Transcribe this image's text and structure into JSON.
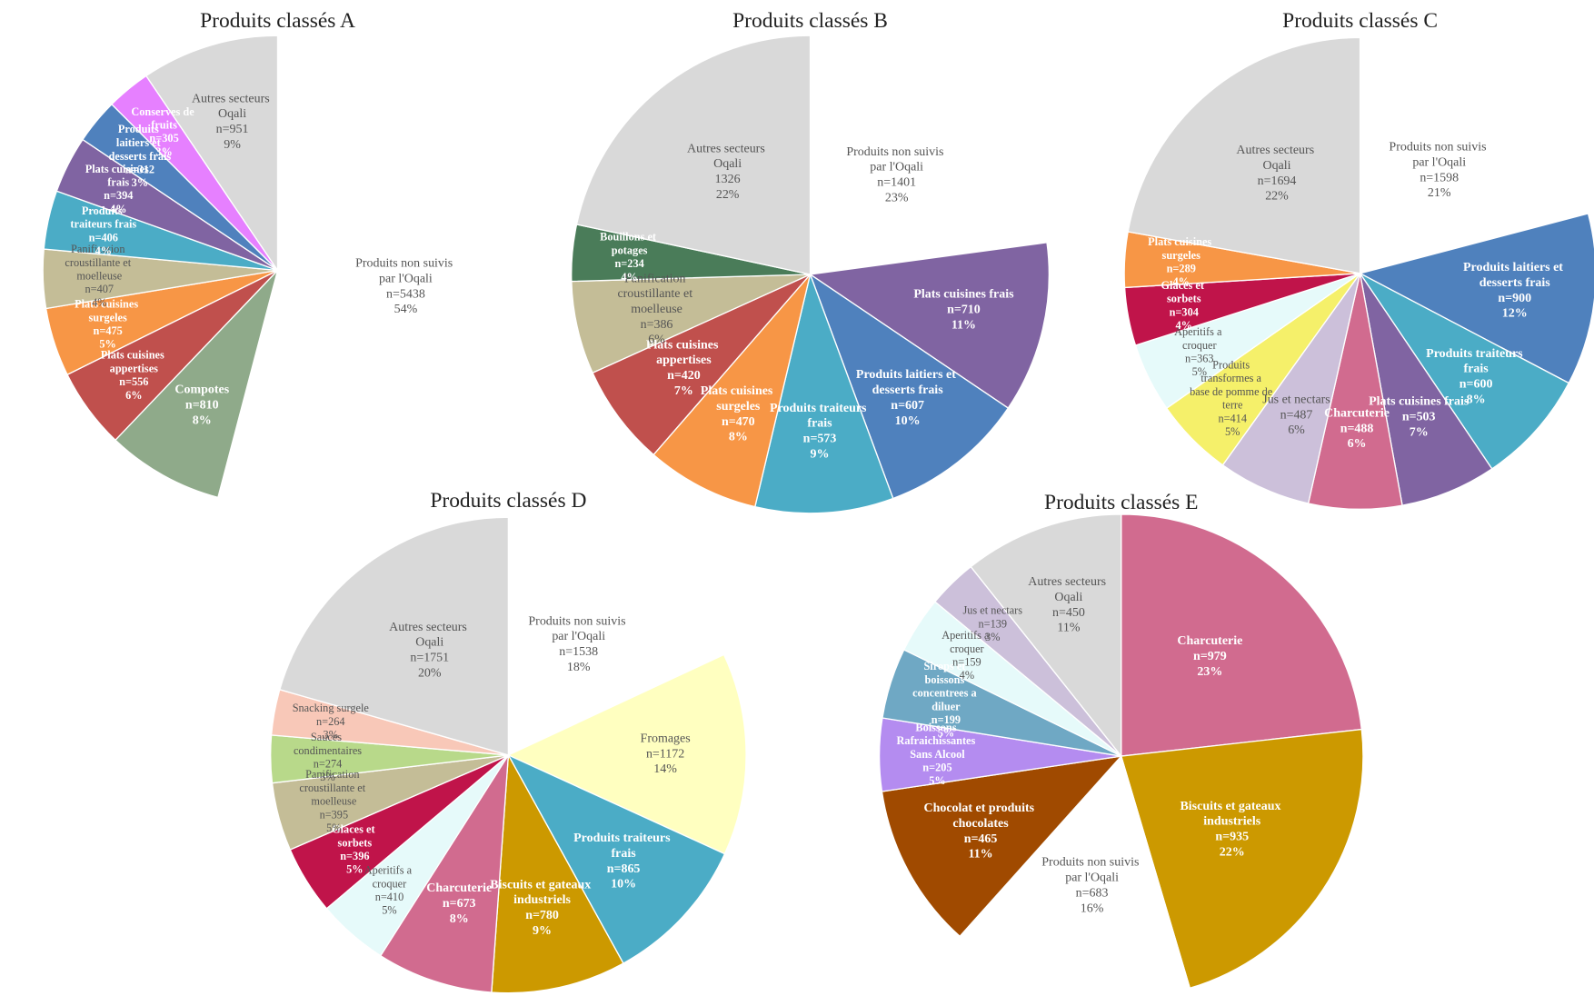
{
  "chart_data": [
    {
      "type": "pie",
      "title": "Produits classés A",
      "categories": [
        "Produits non suivis par l'Oqali",
        "Compotes",
        "Plats cuisines appertises",
        "Plats cuisines surgeles",
        "Panification croustillante et moelleuse",
        "Produits traiteurs frais",
        "Plats cuisines frais",
        "Produits laitiers et desserts frais",
        "Conserves de fruits",
        "Autres secteurs Oqali"
      ],
      "values": [
        5438,
        810,
        556,
        475,
        407,
        406,
        394,
        312,
        305,
        951
      ],
      "value_labels": [
        "n=5438",
        "n=810",
        "n=556",
        "n=475",
        "n=407",
        "n=406",
        "n=394",
        "n=312",
        "n=305",
        "n=951"
      ],
      "percent_labels": [
        "54%",
        "8%",
        "6%",
        "5%",
        "4%",
        "4%",
        "4%",
        "3%",
        "3%",
        "9%"
      ],
      "colors": [
        "#ffffff",
        "#8faa8a",
        "#c0504d",
        "#f79646",
        "#c4bd97",
        "#4bacc6",
        "#8064a2",
        "#4f81bd",
        "#e680ff",
        "#d9d9d9"
      ]
    },
    {
      "type": "pie",
      "title": "Produits classés B",
      "categories": [
        "Produits non suivis par l'Oqali",
        "Plats cuisines frais",
        "Produits laitiers et desserts frais",
        "Produits traiteurs frais",
        "Plats cuisines surgeles",
        "Plats cuisines appertises",
        "Panification croustillante et moelleuse",
        "Bouillons et potages",
        "Autres secteurs Oqali"
      ],
      "values": [
        1401,
        710,
        607,
        573,
        470,
        420,
        386,
        234,
        1326
      ],
      "value_labels": [
        "n=1401",
        "n=710",
        "n=607",
        "n=573",
        "n=470",
        "n=420",
        "n=386",
        "n=234",
        "1326"
      ],
      "percent_labels": [
        "23%",
        "11%",
        "10%",
        "9%",
        "8%",
        "7%",
        "6%",
        "4%",
        "22%"
      ],
      "colors": [
        "#ffffff",
        "#8064a2",
        "#4f81bd",
        "#4bacc6",
        "#f79646",
        "#c0504d",
        "#c4bd97",
        "#4a7c59",
        "#d9d9d9"
      ]
    },
    {
      "type": "pie",
      "title": "Produits classés C",
      "categories": [
        "Produits non suivis par l'Oqali",
        "Produits laitiers et desserts frais",
        "Produits traiteurs frais",
        "Plats cuisines frais",
        "Charcuterie",
        "Jus et nectars",
        "Produits transformes a base de pomme de terre",
        "Aperitifs a croquer",
        "Glaces et sorbets",
        "Plats cuisines surgeles",
        "Autres secteurs Oqali"
      ],
      "values": [
        1598,
        900,
        600,
        503,
        488,
        487,
        414,
        363,
        304,
        289,
        1694
      ],
      "value_labels": [
        "n=1598",
        "n=900",
        "n=600",
        "n=503",
        "n=488",
        "n=487",
        "n=414",
        "n=363",
        "n=304",
        "n=289",
        "n=1694"
      ],
      "percent_labels": [
        "21%",
        "12%",
        "8%",
        "7%",
        "6%",
        "6%",
        "5%",
        "5%",
        "4%",
        "4%",
        "22%"
      ],
      "colors": [
        "#ffffff",
        "#4f81bd",
        "#4bacc6",
        "#8064a2",
        "#d16b8f",
        "#ccc0da",
        "#f5f06a",
        "#e6fafa",
        "#c0144a",
        "#f79646",
        "#d9d9d9"
      ]
    },
    {
      "type": "pie",
      "title": "Produits classés D",
      "categories": [
        "Produits non suivis par l'Oqali",
        "Fromages",
        "Produits traiteurs frais",
        "Biscuits et gateaux industriels",
        "Charcuterie",
        "Aperitifs a croquer",
        "Glaces et sorbets",
        "Panification croustillante et moelleuse",
        "Sauces condimentaires",
        "Snacking surgele",
        "Autres secteurs Oqali"
      ],
      "values": [
        1538,
        1172,
        865,
        780,
        673,
        410,
        396,
        395,
        274,
        264,
        1751
      ],
      "value_labels": [
        "n=1538",
        "n=1172",
        "n=865",
        "n=780",
        "n=673",
        "n=410",
        "n=396",
        "n=395",
        "n=274",
        "n=264",
        "n=1751"
      ],
      "percent_labels": [
        "18%",
        "14%",
        "10%",
        "9%",
        "8%",
        "5%",
        "5%",
        "5%",
        "3%",
        "3%",
        "20%"
      ],
      "colors": [
        "#ffffff",
        "#ffffc0",
        "#4bacc6",
        "#cc9900",
        "#d16b8f",
        "#e6fafa",
        "#c0144a",
        "#c4bd97",
        "#b8d98a",
        "#f8c8b8",
        "#d9d9d9"
      ]
    },
    {
      "type": "pie",
      "title": "Produits classés E",
      "categories": [
        "Charcuterie",
        "Biscuits et gateaux industriels",
        "Produits non suivis par l'Oqali",
        "Chocolat et produits chocolates",
        "Boissons Rafraichissantes Sans Alcool",
        "Sirops et boissons concentrees a diluer",
        "Aperitifs a croquer",
        "Jus et nectars",
        "Autres secteurs Oqali"
      ],
      "values": [
        979,
        935,
        683,
        465,
        205,
        199,
        159,
        139,
        450
      ],
      "value_labels": [
        "n=979",
        "n=935",
        "n=683",
        "n=465",
        "n=205",
        "n=199",
        "n=159",
        "n=139",
        "n=450"
      ],
      "percent_labels": [
        "23%",
        "22%",
        "16%",
        "11%",
        "5%",
        "5%",
        "4%",
        "3%",
        "11%"
      ],
      "colors": [
        "#d16b8f",
        "#cc9900",
        "#ffffff",
        "#a04a00",
        "#b48cf0",
        "#6fa8c4",
        "#e6fafa",
        "#ccc0da",
        "#d9d9d9"
      ]
    }
  ]
}
